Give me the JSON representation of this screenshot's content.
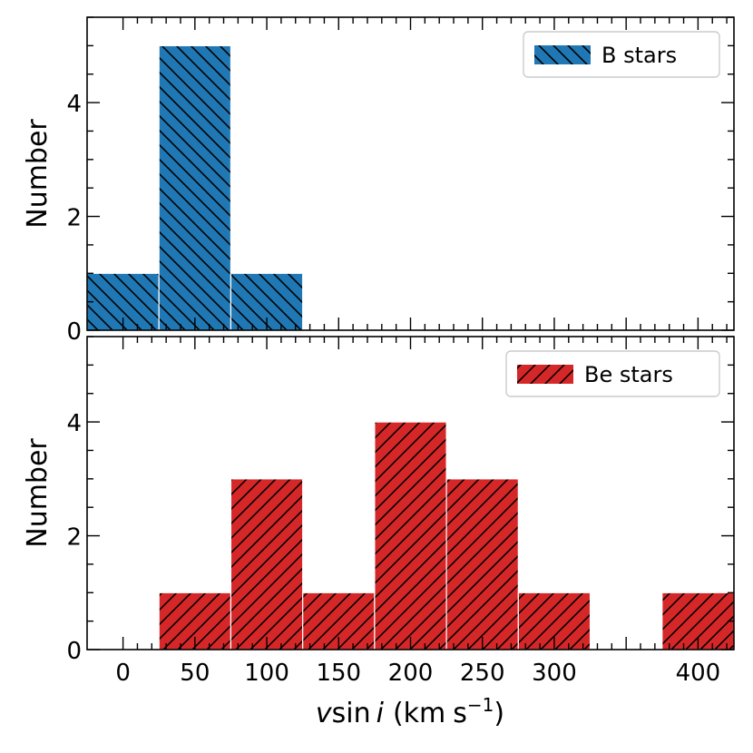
{
  "chart_data": [
    {
      "type": "bar",
      "title": "",
      "xlabel": "",
      "ylabel": "Number",
      "legend": "B stars",
      "legend_position": "top-right",
      "color": "#1f77b4",
      "hatch": "backslash",
      "bin_width": 50,
      "bin_starts": [
        -25,
        25,
        75
      ],
      "values": [
        1,
        5,
        1
      ],
      "xlim": [
        -25,
        425
      ],
      "ylim": [
        0,
        5.5
      ],
      "yticks": [
        "0",
        "2",
        "4"
      ]
    },
    {
      "type": "bar",
      "title": "",
      "xlabel": "v sin i (km s⁻¹)",
      "ylabel": "Number",
      "legend": "Be stars",
      "legend_position": "top-right",
      "color": "#d62728",
      "hatch": "slash",
      "bin_width": 50,
      "bin_starts": [
        25,
        75,
        125,
        175,
        225,
        275,
        375
      ],
      "values": [
        1,
        3,
        1,
        4,
        3,
        1,
        1
      ],
      "xlim": [
        -25,
        425
      ],
      "ylim": [
        0,
        5.5
      ],
      "yticks": [
        "0",
        "2",
        "4"
      ],
      "xticks": [
        "0",
        "50",
        "100",
        "150",
        "200",
        "250",
        "300",
        "400"
      ]
    }
  ]
}
